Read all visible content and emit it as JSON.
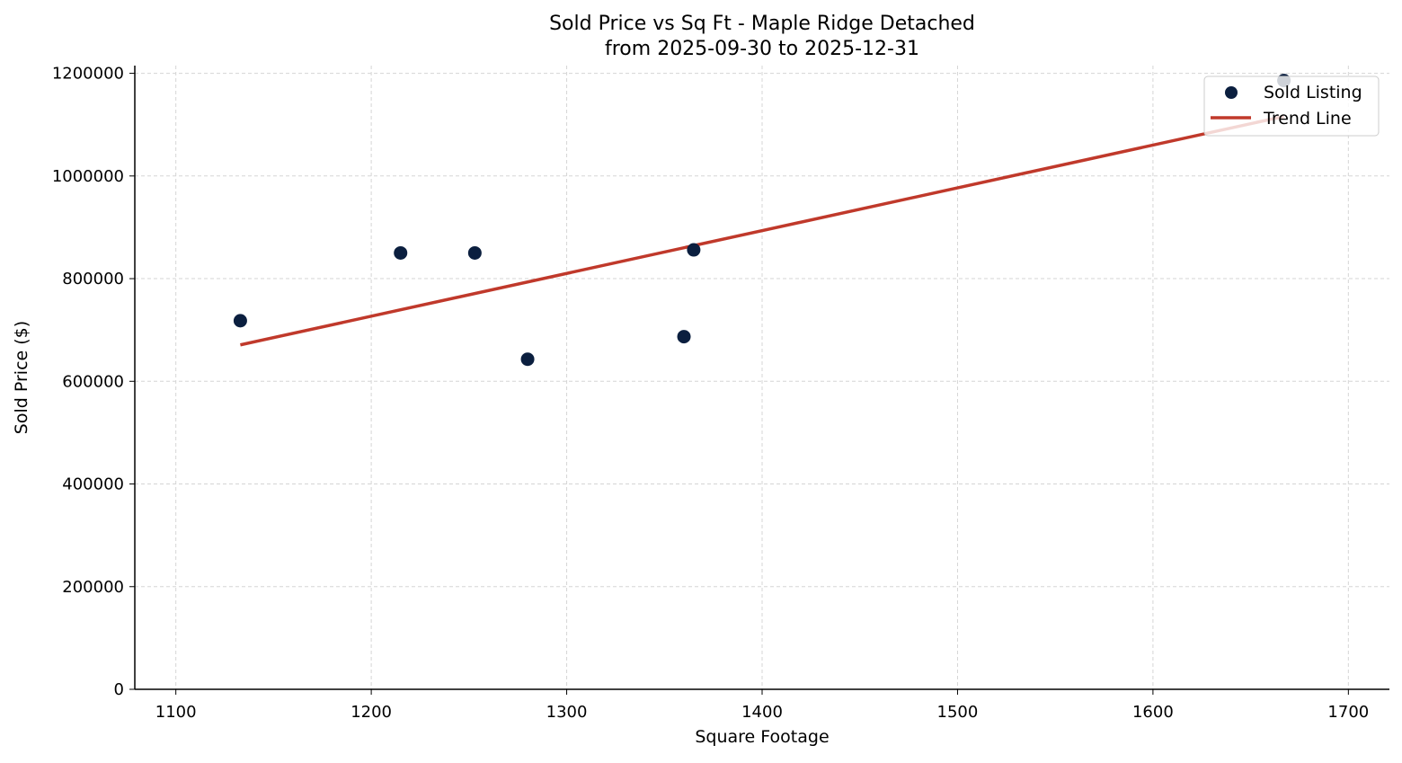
{
  "chart_data": {
    "type": "scatter",
    "title": "Sold Price vs Sq Ft - Maple Ridge Detached",
    "subtitle": "from 2025-09-30 to 2025-12-31",
    "xlabel": "Square Footage",
    "ylabel": "Sold Price ($)",
    "xlim": [
      1079,
      1721
    ],
    "ylim": [
      0,
      1215000
    ],
    "xticks": [
      1100,
      1200,
      1300,
      1400,
      1500,
      1600,
      1700
    ],
    "yticks": [
      0,
      200000,
      400000,
      600000,
      800000,
      1000000,
      1200000
    ],
    "grid": true,
    "legend_position": "top-right",
    "series": [
      {
        "name": "Sold Listing",
        "kind": "scatter",
        "color": "#0b1f3f",
        "points": [
          {
            "x": 1133,
            "y": 718000
          },
          {
            "x": 1215,
            "y": 850000
          },
          {
            "x": 1253,
            "y": 850000
          },
          {
            "x": 1280,
            "y": 643000
          },
          {
            "x": 1360,
            "y": 687000
          },
          {
            "x": 1365,
            "y": 856000
          },
          {
            "x": 1667,
            "y": 1186000
          }
        ]
      },
      {
        "name": "Trend Line",
        "kind": "line",
        "color": "#c0392b",
        "points": [
          {
            "x": 1133,
            "y": 671000
          },
          {
            "x": 1667,
            "y": 1116000
          }
        ]
      }
    ]
  }
}
